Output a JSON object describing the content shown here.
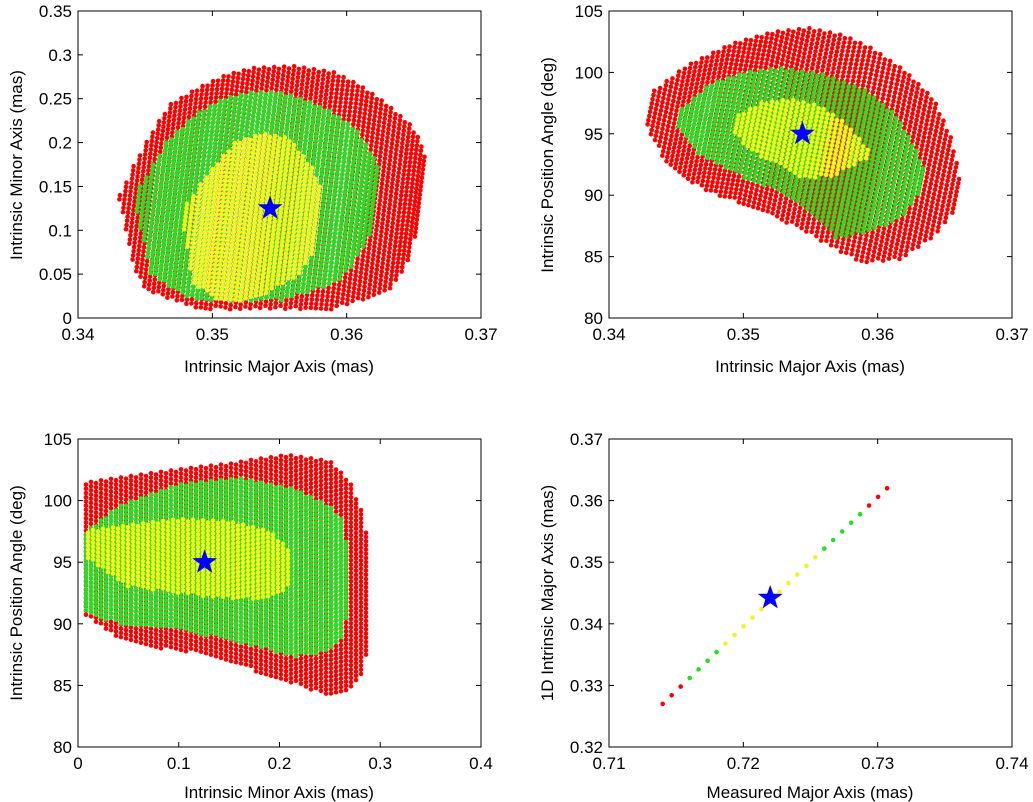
{
  "colors": {
    "outer": "#ff0000",
    "middle": "#22e022",
    "inner": "#f4f420",
    "star": "#0000ff",
    "axes": "#000000"
  },
  "chart_data": [
    {
      "type": "scatter",
      "xlabel": "Intrinsic Major Axis (mas)",
      "ylabel": "Intrinsic Minor Axis (mas)",
      "xlim": [
        0.34,
        0.37
      ],
      "ylim": [
        0,
        0.35
      ],
      "xticks": [
        "0.34",
        "0.35",
        "0.36",
        "0.37"
      ],
      "yticks": [
        "0",
        "0.05",
        "0.1",
        "0.15",
        "0.2",
        "0.25",
        "0.3",
        "0.35"
      ],
      "regions": {
        "outer": [
          [
            0.3431,
            0.135,
            0.14
          ],
          [
            0.344,
            0.09,
            0.18
          ],
          [
            0.345,
            0.05,
            0.215
          ],
          [
            0.346,
            0.03,
            0.243
          ],
          [
            0.348,
            0.02,
            0.262
          ],
          [
            0.35,
            0.01,
            0.277
          ],
          [
            0.352,
            0.01,
            0.285
          ],
          [
            0.355,
            0.01,
            0.287
          ],
          [
            0.358,
            0.01,
            0.28
          ],
          [
            0.36,
            0.01,
            0.265
          ],
          [
            0.362,
            0.02,
            0.245
          ],
          [
            0.364,
            0.03,
            0.22
          ],
          [
            0.365,
            0.06,
            0.2
          ],
          [
            0.3658,
            0.12,
            0.17
          ]
        ],
        "middle": [
          [
            0.3445,
            0.12,
            0.15
          ],
          [
            0.346,
            0.05,
            0.2
          ],
          [
            0.348,
            0.03,
            0.232
          ],
          [
            0.35,
            0.02,
            0.25
          ],
          [
            0.352,
            0.02,
            0.257
          ],
          [
            0.354,
            0.02,
            0.257
          ],
          [
            0.356,
            0.02,
            0.248
          ],
          [
            0.358,
            0.03,
            0.235
          ],
          [
            0.36,
            0.04,
            0.215
          ],
          [
            0.361,
            0.06,
            0.195
          ],
          [
            0.3622,
            0.1,
            0.17
          ]
        ],
        "inner": [
          [
            0.348,
            0.1,
            0.13
          ],
          [
            0.349,
            0.04,
            0.16
          ],
          [
            0.351,
            0.02,
            0.2
          ],
          [
            0.353,
            0.02,
            0.21
          ],
          [
            0.355,
            0.03,
            0.205
          ],
          [
            0.357,
            0.05,
            0.17
          ],
          [
            0.358,
            0.08,
            0.14
          ]
        ]
      },
      "star": [
        0.3543,
        0.125
      ]
    },
    {
      "type": "scatter",
      "xlabel": "Intrinsic Major Axis (mas)",
      "ylabel": "Intrinsic Position Angle (deg)",
      "xlim": [
        0.34,
        0.37
      ],
      "ylim": [
        80,
        105
      ],
      "xticks": [
        "0.34",
        "0.35",
        "0.36",
        "0.37"
      ],
      "yticks": [
        "80",
        "85",
        "90",
        "95",
        "100",
        "105"
      ],
      "regions": {
        "outer": [
          [
            0.3431,
            95.5,
            98.5
          ],
          [
            0.345,
            92.5,
            100.5
          ],
          [
            0.348,
            90.5,
            102.3
          ],
          [
            0.351,
            89.3,
            103.3
          ],
          [
            0.3535,
            88.3,
            103.6
          ],
          [
            0.356,
            87,
            103
          ],
          [
            0.358,
            85.8,
            102
          ],
          [
            0.3605,
            84.4,
            100.2
          ],
          [
            0.363,
            84.8,
            97.8
          ],
          [
            0.3648,
            86.5,
            94.5
          ],
          [
            0.3659,
            88.5,
            91.2
          ]
        ],
        "middle": [
          [
            0.3453,
            95.5,
            97
          ],
          [
            0.347,
            93.5,
            99
          ],
          [
            0.3495,
            92,
            100
          ],
          [
            0.352,
            91,
            100.3
          ],
          [
            0.355,
            89.5,
            99.8
          ],
          [
            0.358,
            86.5,
            98.5
          ],
          [
            0.3605,
            87,
            96.5
          ],
          [
            0.3625,
            88.5,
            93.5
          ],
          [
            0.3635,
            90.5,
            91.5
          ]
        ],
        "inner": [
          [
            0.3495,
            95,
            96.5
          ],
          [
            0.351,
            93.5,
            97.5
          ],
          [
            0.353,
            92.5,
            97.8
          ],
          [
            0.355,
            91.3,
            97.3
          ],
          [
            0.357,
            91.5,
            96
          ],
          [
            0.3585,
            92.5,
            94.5
          ],
          [
            0.3595,
            93,
            93.3
          ]
        ]
      },
      "star": [
        0.3544,
        95.0
      ]
    },
    {
      "type": "scatter",
      "xlabel": "Intrinsic Minor Axis (mas)",
      "ylabel": "Intrinsic Position Angle (deg)",
      "xlim": [
        0,
        0.4
      ],
      "ylim": [
        80,
        105
      ],
      "xticks": [
        "0",
        "0.1",
        "0.2",
        "0.3",
        "0.4"
      ],
      "yticks": [
        "80",
        "85",
        "90",
        "95",
        "100",
        "105"
      ],
      "regions": {
        "outer": [
          [
            0.003,
            91,
            101.4
          ],
          [
            0.036,
            89,
            101.8
          ],
          [
            0.08,
            88,
            102.3
          ],
          [
            0.117,
            87.6,
            102.7
          ],
          [
            0.152,
            86.8,
            103
          ],
          [
            0.172,
            86.25,
            103.3
          ],
          [
            0.208,
            85.3,
            103.7
          ],
          [
            0.25,
            84.1,
            103.2
          ],
          [
            0.27,
            84.5,
            101.5
          ],
          [
            0.282,
            86,
            99
          ],
          [
            0.29,
            89,
            96
          ]
        ],
        "middle": [
          [
            0.003,
            91,
            97.1
          ],
          [
            0.04,
            90,
            99.5
          ],
          [
            0.1,
            89.5,
            101.3
          ],
          [
            0.16,
            88.5,
            101.8
          ],
          [
            0.215,
            87.3,
            100.9
          ],
          [
            0.25,
            87.8,
            99.5
          ],
          [
            0.262,
            89,
            98.4
          ],
          [
            0.268,
            91,
            96
          ]
        ],
        "inner": [
          [
            0.005,
            95.5,
            97.5
          ],
          [
            0.05,
            93,
            98
          ],
          [
            0.1,
            92.5,
            98.5
          ],
          [
            0.15,
            92,
            98.3
          ],
          [
            0.19,
            92,
            97.5
          ],
          [
            0.21,
            93,
            96
          ]
        ]
      },
      "star": [
        0.1257,
        95.0
      ]
    },
    {
      "type": "scatter",
      "xlabel": "Measured Major Axis (mas)",
      "ylabel": "1D Intrinsic Major Axis (mas)",
      "xlim": [
        0.71,
        0.74
      ],
      "ylim": [
        0.32,
        0.37
      ],
      "xticks": [
        "0.71",
        "0.72",
        "0.73",
        "0.74"
      ],
      "yticks": [
        "0.32",
        "0.33",
        "0.34",
        "0.35",
        "0.36",
        "0.37"
      ],
      "points": {
        "x_start": 0.714,
        "x_end": 0.7307,
        "y_start": 0.327,
        "y_end": 0.362,
        "levels": [
          "outer",
          "outer",
          "outer",
          "middle",
          "middle",
          "middle",
          "middle",
          "inner",
          "inner",
          "inner",
          "inner",
          "inner",
          "inner",
          "inner",
          "inner",
          "inner",
          "inner",
          "inner",
          "middle",
          "middle",
          "middle",
          "middle",
          "middle",
          "outer",
          "outer",
          "outer"
        ]
      },
      "star": [
        0.722,
        0.3442
      ]
    }
  ]
}
